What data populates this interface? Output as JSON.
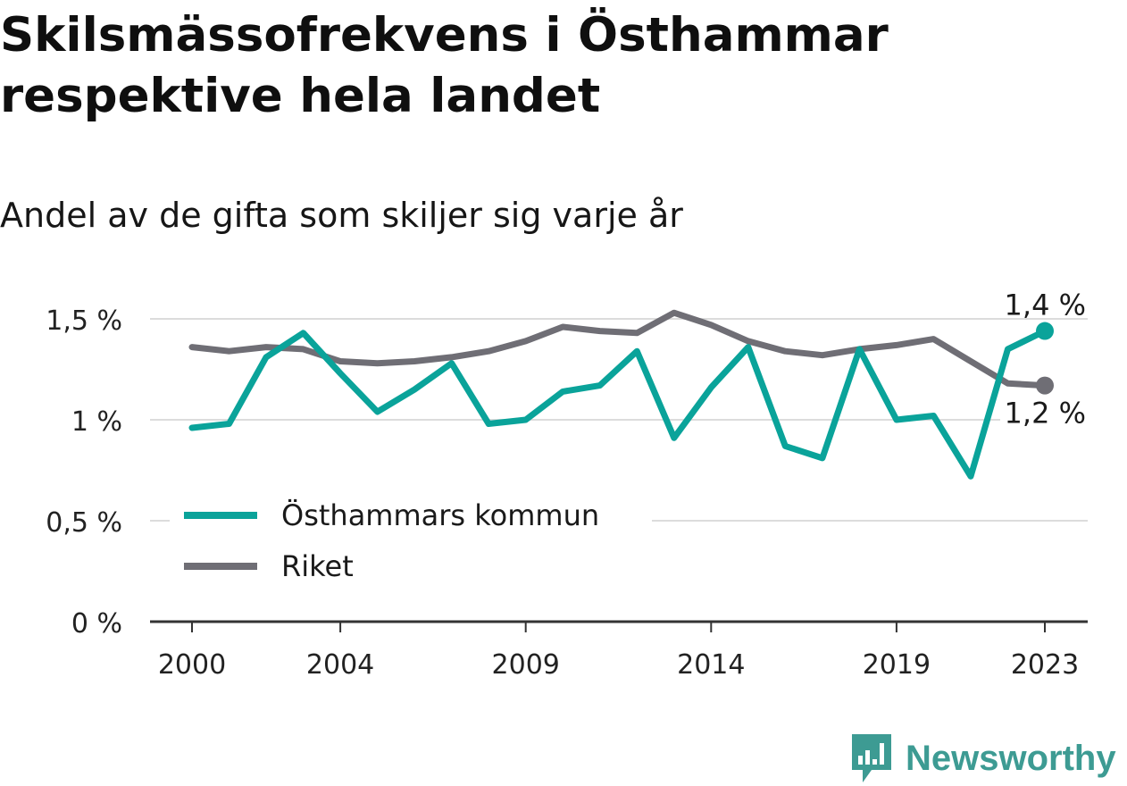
{
  "header": {
    "title": "Skilsmässofrekvens i Östhammar respektive hela landet",
    "subtitle": "Andel av de gifta som skiljer sig varje år"
  },
  "brand": {
    "name": "Newsworthy",
    "logo_icon": "bar-chart-speech-bubble-icon",
    "color": "#3d9b93"
  },
  "colors": {
    "osthammar": "#0aa39a",
    "riket": "#6f6e75",
    "grid": "#dcdcdc",
    "axis": "#333333"
  },
  "chart_data": {
    "type": "line",
    "title": "Skilsmässofrekvens i Östhammar respektive hela landet",
    "subtitle": "Andel av de gifta som skiljer sig varje år",
    "x": [
      2000,
      2001,
      2002,
      2003,
      2004,
      2005,
      2006,
      2007,
      2008,
      2009,
      2010,
      2011,
      2012,
      2013,
      2014,
      2015,
      2016,
      2017,
      2018,
      2019,
      2020,
      2021,
      2022,
      2023
    ],
    "x_ticks": [
      2000,
      2004,
      2009,
      2014,
      2019,
      2023
    ],
    "y_ticks": [
      0,
      0.5,
      1,
      1.5
    ],
    "y_tick_labels": [
      "0 %",
      "0,5 %",
      "1 %",
      "1,5 %"
    ],
    "ylim": [
      0,
      1.5
    ],
    "grid": true,
    "legend": "inside-bottom-left",
    "series": [
      {
        "name": "Östhammars kommun",
        "color": "#0aa39a",
        "values": [
          0.96,
          0.98,
          1.31,
          1.43,
          1.23,
          1.04,
          1.15,
          1.28,
          0.98,
          1.0,
          1.14,
          1.17,
          1.34,
          0.91,
          1.16,
          1.36,
          0.87,
          0.81,
          1.35,
          1.0,
          1.02,
          0.72,
          1.35,
          1.44
        ],
        "end_label": "1,4 %"
      },
      {
        "name": "Riket",
        "color": "#6f6e75",
        "values": [
          1.36,
          1.34,
          1.36,
          1.35,
          1.29,
          1.28,
          1.29,
          1.31,
          1.34,
          1.39,
          1.46,
          1.44,
          1.43,
          1.53,
          1.47,
          1.39,
          1.34,
          1.32,
          1.35,
          1.37,
          1.4,
          1.29,
          1.18,
          1.17
        ],
        "end_label": "1,2 %"
      }
    ]
  }
}
